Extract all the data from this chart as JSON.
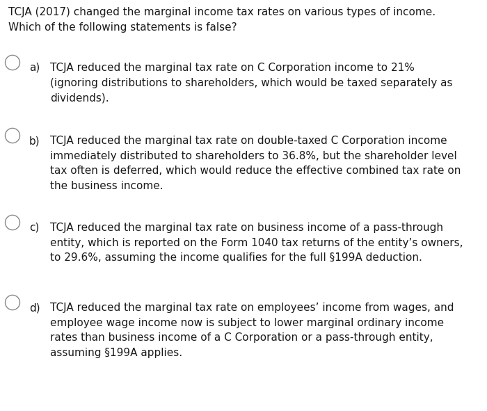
{
  "background_color": "#ffffff",
  "text_color": "#1a1a1a",
  "question_text": "TCJA (2017) changed the marginal income tax rates on various types of income.\nWhich of the following statements is false?",
  "options": [
    {
      "label": "a)",
      "text": "TCJA reduced the marginal tax rate on C Corporation income to 21%\n(ignoring distributions to shareholders, which would be taxed separately as\ndividends)."
    },
    {
      "label": "b)",
      "text": "TCJA reduced the marginal tax rate on double-taxed C Corporation income\nimmediately distributed to shareholders to 36.8%, but the shareholder level\ntax often is deferred, which would reduce the effective combined tax rate on\nthe business income."
    },
    {
      "label": "c)",
      "text": "TCJA reduced the marginal tax rate on business income of a pass-through\nentity, which is reported on the Form 1040 tax returns of the entity’s owners,\nto 29.6%, assuming the income qualifies for the full §199A deduction."
    },
    {
      "label": "d)",
      "text": "TCJA reduced the marginal tax rate on employees’ income from wages, and\nemployee wage income now is subject to lower marginal ordinary income\nrates than business income of a C Corporation or a pass-through entity,\nassuming §199A applies."
    }
  ],
  "font_size": 11.0,
  "figsize": [
    7.0,
    5.91
  ],
  "dpi": 100
}
